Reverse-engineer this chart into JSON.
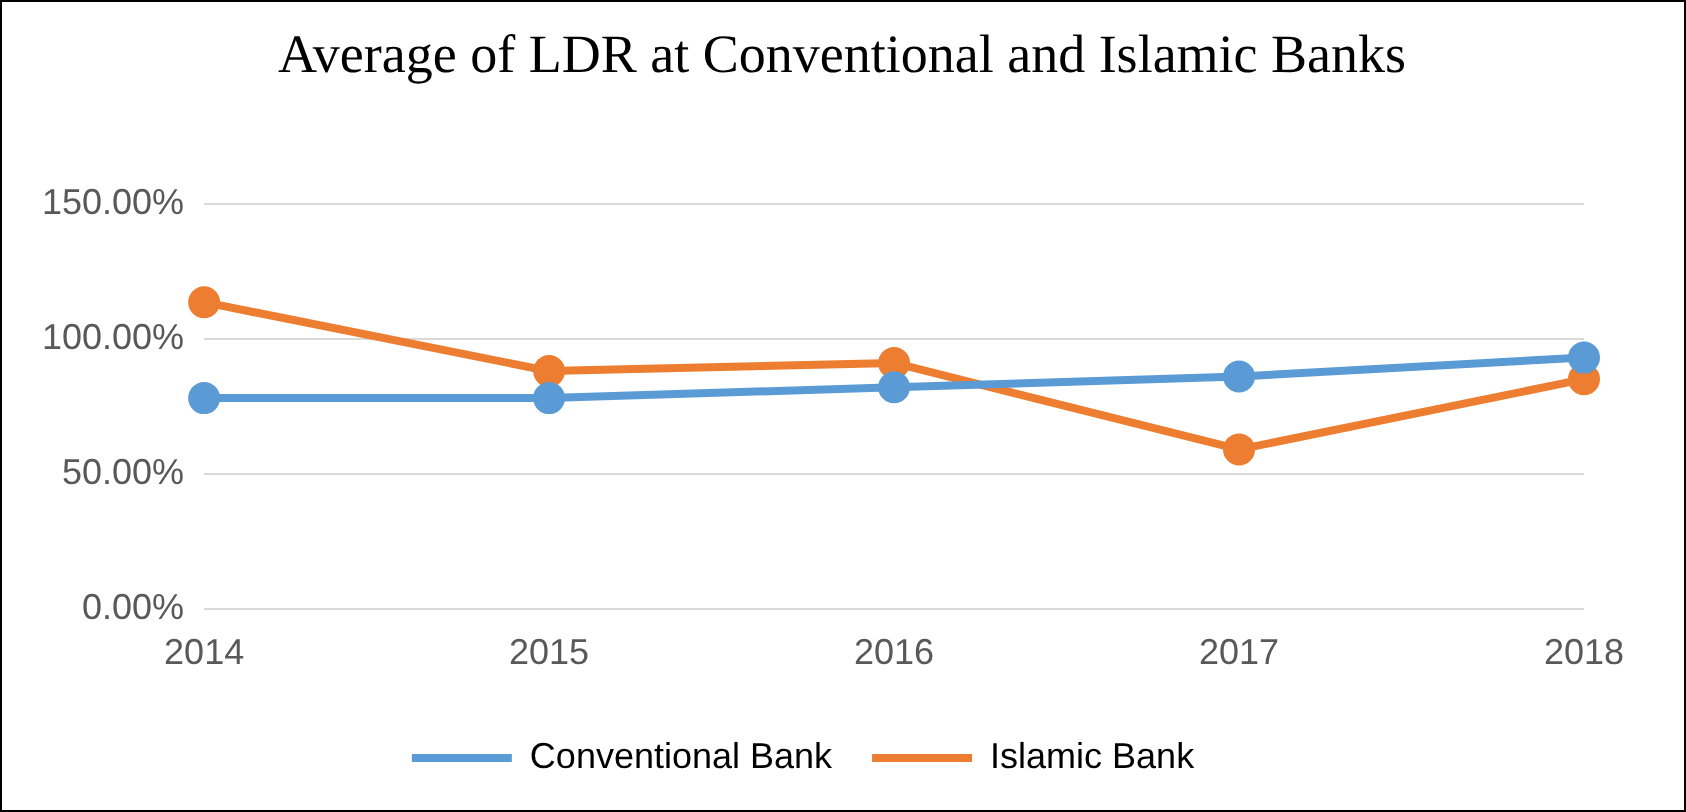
{
  "chart_data": {
    "type": "line",
    "title": "Average of LDR at Conventional and Islamic Banks",
    "categories": [
      "2014",
      "2015",
      "2016",
      "2017",
      "2018"
    ],
    "series": [
      {
        "name": "Conventional Bank",
        "color": "#5b9bd5",
        "values": [
          78,
          78,
          82,
          86,
          93
        ]
      },
      {
        "name": "Islamic Bank",
        "color": "#ed7d31",
        "values": [
          113.5,
          88,
          91,
          59,
          85
        ]
      }
    ],
    "ylim": [
      0,
      150
    ],
    "yticks": [
      {
        "value": 0,
        "label": "0.00%"
      },
      {
        "value": 50,
        "label": "50.00%"
      },
      {
        "value": 100,
        "label": "100.00%"
      },
      {
        "value": 150,
        "label": "150.00%"
      }
    ],
    "grid": "y",
    "legend": "bottom",
    "marker": "circle",
    "line_style": "solid"
  }
}
